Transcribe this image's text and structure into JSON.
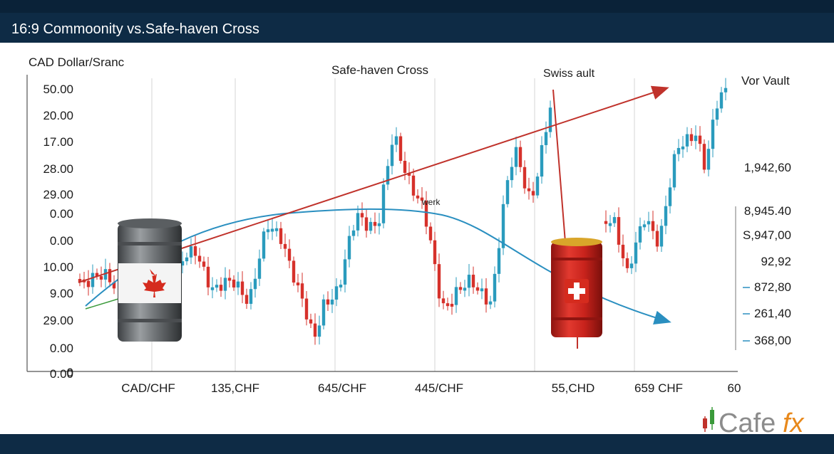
{
  "header": {
    "title": "16:9 Commoonity vs.Safe-haven Cross"
  },
  "chart": {
    "y_axis_title": "CAD Dollar/Sranc",
    "title": "Safe-haven Cross",
    "annotations": [
      "Swiss ault",
      "Vor Vault",
      "werk"
    ],
    "left_labels": [
      "50.00",
      "20.00",
      "17.00",
      "28.00",
      "29.00",
      "0.00",
      "0.00",
      "10.00",
      "9.00",
      "29.00",
      "0.00",
      "0.00",
      "0"
    ],
    "right_labels": [
      "1,942,60",
      "8,945.40",
      "S,947,00",
      "92,92",
      "872,80",
      "261,40",
      "368,00"
    ],
    "bottom_labels": [
      "CAD/CHF",
      "135,CHF",
      "645/CHF",
      "445/CHF",
      "55,CHD",
      "659 CHF",
      "60"
    ]
  },
  "logo": {
    "main": "Cafe",
    "accent": "fx"
  }
}
